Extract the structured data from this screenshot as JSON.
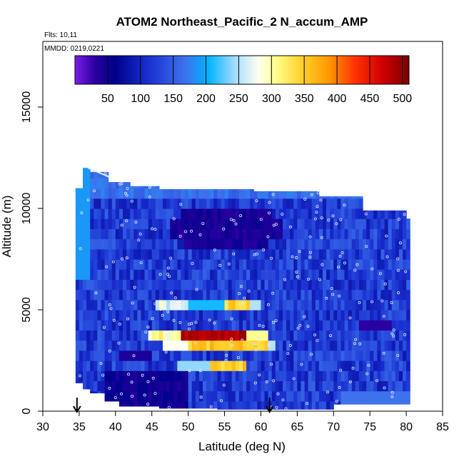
{
  "title": "ATOM2 Northeast_Pacific_2 N_accum_AMP",
  "flights_label": "Flts: 10,11",
  "dates_label": "MMDD: 0219,0221",
  "chart_data": {
    "type": "heatmap",
    "title": "ATOM2 Northeast_Pacific_2 N_accum_AMP",
    "xlabel": "Latitude (deg N)",
    "ylabel": "Altitude (m)",
    "xlim": [
      30,
      85
    ],
    "ylim": [
      0,
      17500
    ],
    "x_ticks": [
      30,
      35,
      40,
      45,
      50,
      55,
      60,
      65,
      70,
      75,
      80,
      85
    ],
    "y_ticks": [
      0,
      5000,
      10000,
      15000
    ],
    "colorbar": {
      "range": [
        0,
        510
      ],
      "ticks": [
        50,
        100,
        150,
        200,
        250,
        300,
        350,
        400,
        450,
        500
      ],
      "colors": [
        "#8a2be2",
        "#00008b",
        "#0000cd",
        "#3a5fe0",
        "#00bfff",
        "#b0e8ff",
        "#ffffc0",
        "#ffe040",
        "#ffa500",
        "#ff4000",
        "#cc0000",
        "#8b0000"
      ]
    },
    "markers": [
      {
        "x": 34.7,
        "y": 0
      },
      {
        "x": 61.2,
        "y": 0
      }
    ]
  }
}
